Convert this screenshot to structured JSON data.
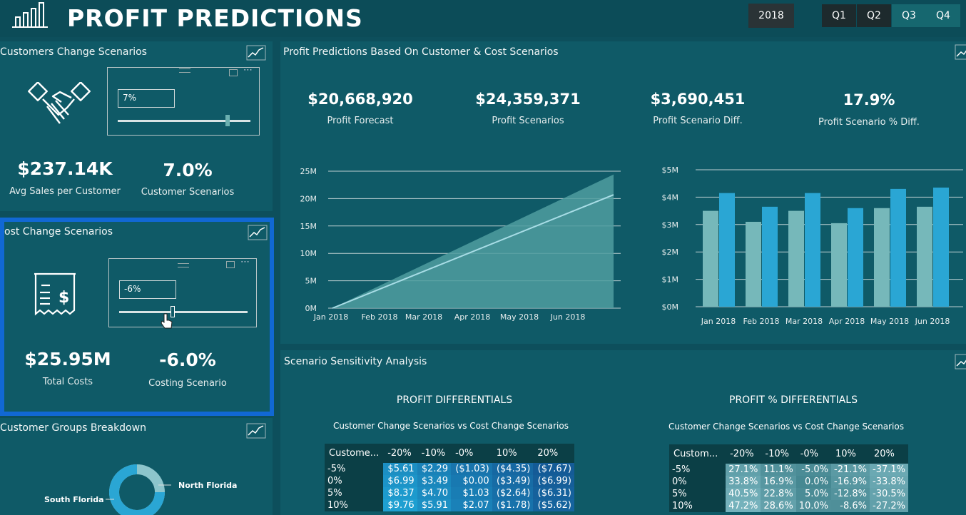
{
  "header": {
    "title": "PROFIT PREDICTIONS",
    "year": "2018",
    "quarters": [
      "Q1",
      "Q2",
      "Q3",
      "Q4"
    ]
  },
  "customers_panel": {
    "title": "Customers Change Scenarios",
    "slicer_value": "7%",
    "slider_fraction": 0.81,
    "kpis": [
      {
        "value": "$237.14K",
        "label": "Avg Sales per Customer"
      },
      {
        "value": "7.0%",
        "label": "Customer Scenarios"
      }
    ]
  },
  "cost_panel": {
    "title": "ost Change Scenarios",
    "slicer_value": "-6%",
    "slider_fraction": 0.4,
    "kpis": [
      {
        "value": "$25.95M",
        "label": "Total Costs"
      },
      {
        "value": "-6.0%",
        "label": "Costing Scenario"
      }
    ]
  },
  "groups_panel": {
    "title": "Customer Groups Breakdown",
    "labels": [
      "South Florida",
      "North Florida"
    ]
  },
  "predictions_panel": {
    "title": "Profit Predictions Based On Customer & Cost Scenarios",
    "kpis": [
      {
        "value": "$20,668,920",
        "label": "Profit Forecast"
      },
      {
        "value": "$24,359,371",
        "label": "Profit Scenarios"
      },
      {
        "value": "$3,690,451",
        "label": "Profit Scenario Diff."
      },
      {
        "value": "17.9%",
        "label": "Profit Scenario % Diff."
      }
    ]
  },
  "sensitivity_panel": {
    "title": "Scenario Sensitivity Analysis",
    "left_title": "PROFIT DIFFERENTIALS",
    "left_subtitle": "Customer Change Scenarios vs Cost Change Scenarios",
    "left_headers": [
      "Custome...",
      "-20%",
      "-10%",
      "-0%",
      "10%",
      "20%"
    ],
    "left_rows": [
      [
        "-5%",
        "$5.61",
        "$2.29",
        "($1.03)",
        "($4.35)",
        "($7.67)"
      ],
      [
        "0%",
        "$6.99",
        "$3.49",
        "$0.00",
        "($3.49)",
        "($6.99)"
      ],
      [
        "5%",
        "$8.37",
        "$4.70",
        "$1.03",
        "($2.64)",
        "($6.31)"
      ],
      [
        "10%",
        "$9.76",
        "$5.91",
        "$2.07",
        "($1.78)",
        "($5.62)"
      ]
    ],
    "right_title": "PROFIT % DIFFERENTIALS",
    "right_subtitle": "Customer Change Scenarios vs Cost Change Scenarios",
    "right_headers": [
      "Custom...",
      "-20%",
      "-10%",
      "-0%",
      "10%",
      "20%"
    ],
    "right_rows": [
      [
        "-5%",
        "27.1%",
        "11.1%",
        "-5.0%",
        "-21.1%",
        "-37.1%"
      ],
      [
        "0%",
        "33.8%",
        "16.9%",
        "0.0%",
        "-16.9%",
        "-33.8%"
      ],
      [
        "5%",
        "40.5%",
        "22.8%",
        "5.0%",
        "-12.8%",
        "-30.5%"
      ],
      [
        "10%",
        "47.2%",
        "28.6%",
        "10.0%",
        "-8.6%",
        "-27.2%"
      ]
    ]
  },
  "chart_data": [
    {
      "type": "area",
      "title": "",
      "x": [
        "Jan 2018",
        "Feb 2018",
        "Mar 2018",
        "Apr 2018",
        "May 2018",
        "Jun 2018"
      ],
      "yticks": [
        "0M",
        "5M",
        "10M",
        "15M",
        "20M",
        "25M"
      ],
      "ylim": [
        0,
        25
      ],
      "series": [
        {
          "values_start": 0,
          "values_end": 24.4,
          "style": "area"
        },
        {
          "values_start": 0,
          "values_end": 20.7,
          "style": "line"
        }
      ],
      "colors": {
        "area": "#4f9ea0",
        "line": "#a8dde6"
      }
    },
    {
      "type": "bar",
      "title": "",
      "categories": [
        "Jan 2018",
        "Feb 2018",
        "Mar 2018",
        "Apr 2018",
        "May 2018",
        "Jun 2018"
      ],
      "yticks": [
        "$0M",
        "$1M",
        "$2M",
        "$3M",
        "$4M",
        "$5M"
      ],
      "ylim": [
        0,
        5
      ],
      "series": [
        {
          "values": [
            3.5,
            3.1,
            3.5,
            3.05,
            3.6,
            3.65
          ]
        },
        {
          "values": [
            4.15,
            3.65,
            4.15,
            3.6,
            4.3,
            4.35
          ]
        }
      ],
      "colors": [
        "#76b8ba",
        "#2aa6d4"
      ]
    }
  ],
  "colors": {
    "background": "#0d4f5c",
    "panel": "#0f5a67",
    "highlight_border": "#1168d4",
    "matrix_dark": "#0b3f46"
  }
}
